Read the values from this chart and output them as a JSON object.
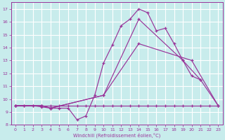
{
  "background_color": "#c8ecec",
  "grid_color": "#ffffff",
  "line_color": "#993399",
  "xlim": [
    -0.5,
    23.5
  ],
  "ylim": [
    8,
    17.5
  ],
  "xticks": [
    0,
    1,
    2,
    3,
    4,
    5,
    6,
    7,
    8,
    9,
    10,
    11,
    12,
    13,
    14,
    15,
    16,
    17,
    18,
    19,
    20,
    21,
    22,
    23
  ],
  "yticks": [
    8,
    9,
    10,
    11,
    12,
    13,
    14,
    15,
    16,
    17
  ],
  "xlabel": "Windchill (Refroidissement éolien,°C)",
  "curve_flat_x": [
    0,
    1,
    2,
    3,
    4,
    5,
    6,
    7,
    8,
    9,
    10,
    11,
    12,
    13,
    14,
    15,
    16,
    17,
    18,
    19,
    20,
    21,
    22,
    23
  ],
  "curve_flat_y": [
    9.5,
    9.5,
    9.5,
    9.5,
    9.5,
    9.5,
    9.5,
    9.5,
    9.5,
    9.5,
    9.5,
    9.5,
    9.5,
    9.5,
    9.5,
    9.5,
    9.5,
    9.5,
    9.5,
    9.5,
    9.5,
    9.5,
    9.5,
    9.5
  ],
  "curve_main_x": [
    0,
    1,
    2,
    3,
    4,
    5,
    6,
    7,
    8,
    9,
    10,
    11,
    12,
    13,
    14,
    15,
    16,
    17,
    18,
    19,
    20,
    21
  ],
  "curve_main_y": [
    9.5,
    9.5,
    9.5,
    9.4,
    9.3,
    9.3,
    9.3,
    8.4,
    8.7,
    10.3,
    12.8,
    14.2,
    15.7,
    16.2,
    17.0,
    16.7,
    15.3,
    15.5,
    14.3,
    13.0,
    11.8,
    11.5
  ],
  "curve_diag1_x": [
    0,
    3,
    4,
    10,
    14,
    19,
    21,
    23
  ],
  "curve_diag1_y": [
    9.5,
    9.5,
    9.3,
    10.3,
    16.2,
    13.0,
    11.5,
    9.5
  ],
  "curve_diag2_x": [
    0,
    3,
    4,
    10,
    14,
    20,
    23
  ],
  "curve_diag2_y": [
    9.5,
    9.5,
    9.3,
    10.3,
    14.3,
    13.0,
    9.5
  ]
}
